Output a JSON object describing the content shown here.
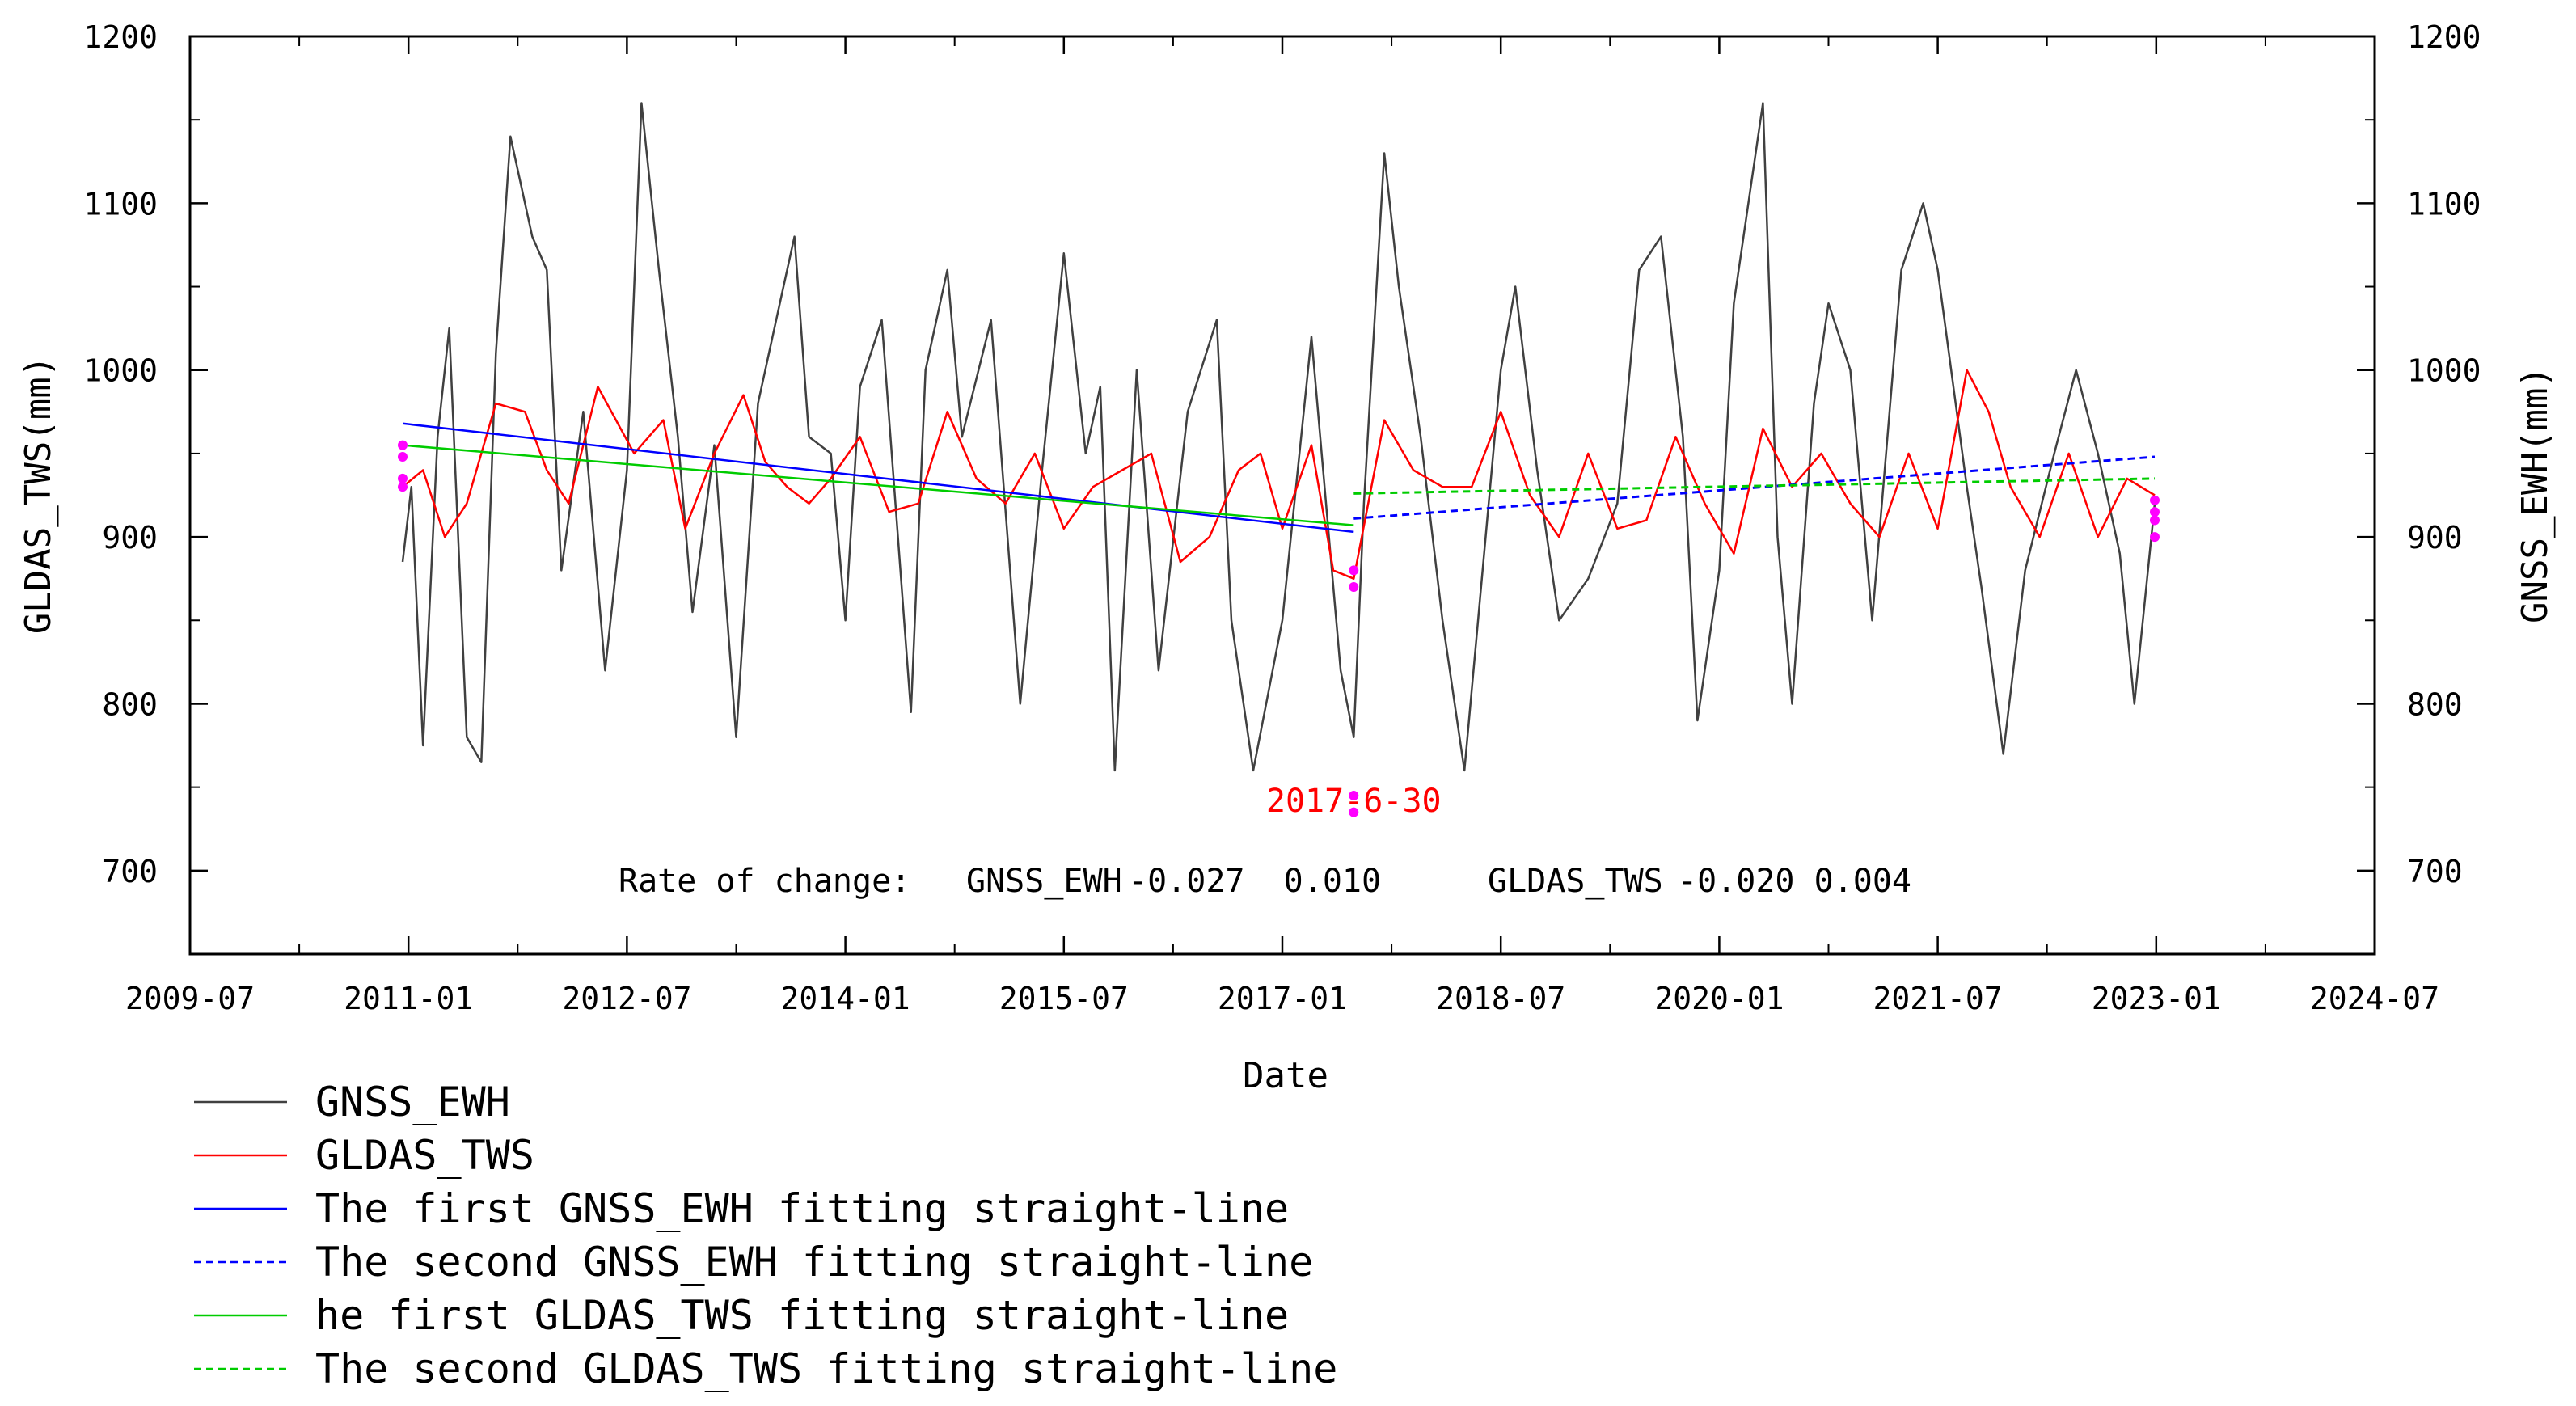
{
  "chart_data": {
    "type": "line",
    "xlabel": "Date",
    "ylabel_left": "GLDAS_TWS(mm)",
    "ylabel_right": "GNSS_EWH(mm)",
    "x_range": [
      "2009-07",
      "2024-07"
    ],
    "x_tick_labels": [
      "2009-07",
      "2011-01",
      "2012-07",
      "2014-01",
      "2015-07",
      "2017-01",
      "2018-07",
      "2020-01",
      "2021-07",
      "2023-01",
      "2024-07"
    ],
    "ylim": [
      650,
      1200
    ],
    "y_tick_values": [
      700,
      800,
      900,
      1000,
      1100,
      1200
    ],
    "y_tick_labels": [
      "700",
      "800",
      "900",
      "1000",
      "1100",
      "1200"
    ],
    "series": [
      {
        "name": "GNSS_EWH",
        "color": "#404040",
        "style": "solid",
        "x": [
          2010.96,
          2011.02,
          2011.1,
          2011.2,
          2011.28,
          2011.4,
          2011.5,
          2011.6,
          2011.7,
          2011.85,
          2011.95,
          2012.05,
          2012.2,
          2012.35,
          2012.5,
          2012.6,
          2012.72,
          2012.85,
          2012.95,
          2013.1,
          2013.25,
          2013.4,
          2013.55,
          2013.65,
          2013.75,
          2013.9,
          2014.0,
          2014.1,
          2014.25,
          2014.45,
          2014.55,
          2014.7,
          2014.8,
          2015.0,
          2015.2,
          2015.35,
          2015.5,
          2015.65,
          2015.75,
          2015.85,
          2016.0,
          2016.15,
          2016.35,
          2016.55,
          2016.65,
          2016.8,
          2017.0,
          2017.2,
          2017.4,
          2017.49,
          2017.56,
          2017.7,
          2017.8,
          2017.95,
          2018.1,
          2018.25,
          2018.5,
          2018.6,
          2018.75,
          2018.9,
          2019.1,
          2019.3,
          2019.45,
          2019.6,
          2019.75,
          2019.85,
          2020.0,
          2020.1,
          2020.3,
          2020.4,
          2020.5,
          2020.65,
          2020.75,
          2020.9,
          2021.05,
          2021.25,
          2021.4,
          2021.5,
          2021.7,
          2021.8,
          2021.95,
          2022.1,
          2022.3,
          2022.45,
          2022.6,
          2022.75,
          2022.85,
          2022.99
        ],
        "values": [
          885,
          930,
          775,
          960,
          1025,
          780,
          765,
          1010,
          1140,
          1080,
          1060,
          880,
          975,
          820,
          940,
          1160,
          1060,
          960,
          855,
          955,
          780,
          980,
          1040,
          1080,
          960,
          950,
          850,
          990,
          1030,
          795,
          1000,
          1060,
          960,
          1030,
          800,
          940,
          1070,
          950,
          990,
          760,
          1000,
          820,
          975,
          1030,
          850,
          760,
          850,
          1020,
          820,
          780,
          920,
          1130,
          1050,
          960,
          850,
          760,
          1000,
          1050,
          940,
          850,
          875,
          920,
          1060,
          1080,
          960,
          790,
          880,
          1040,
          1160,
          900,
          800,
          980,
          1040,
          1000,
          850,
          1060,
          1100,
          1060,
          930,
          870,
          770,
          880,
          950,
          1000,
          950,
          890,
          800,
          920
        ]
      },
      {
        "name": "GLDAS_TWS",
        "color": "#ff0000",
        "style": "solid",
        "x": [
          2010.96,
          2011.1,
          2011.25,
          2011.4,
          2011.6,
          2011.8,
          2011.95,
          2012.1,
          2012.3,
          2012.55,
          2012.75,
          2012.9,
          2013.1,
          2013.3,
          2013.45,
          2013.6,
          2013.75,
          2013.9,
          2014.1,
          2014.3,
          2014.5,
          2014.7,
          2014.9,
          2015.1,
          2015.3,
          2015.5,
          2015.7,
          2015.9,
          2016.1,
          2016.3,
          2016.5,
          2016.7,
          2016.85,
          2017.0,
          2017.2,
          2017.35,
          2017.49,
          2017.7,
          2017.9,
          2018.1,
          2018.3,
          2018.5,
          2018.7,
          2018.9,
          2019.1,
          2019.3,
          2019.5,
          2019.7,
          2019.9,
          2020.1,
          2020.3,
          2020.5,
          2020.7,
          2020.9,
          2021.1,
          2021.3,
          2021.5,
          2021.7,
          2021.85,
          2022.0,
          2022.2,
          2022.4,
          2022.6,
          2022.8,
          2022.99
        ],
        "values": [
          930,
          940,
          900,
          920,
          980,
          975,
          940,
          920,
          990,
          950,
          970,
          905,
          950,
          985,
          945,
          930,
          920,
          935,
          960,
          915,
          920,
          975,
          935,
          920,
          950,
          905,
          930,
          940,
          950,
          885,
          900,
          940,
          950,
          905,
          955,
          880,
          875,
          970,
          940,
          930,
          930,
          975,
          925,
          900,
          950,
          905,
          910,
          960,
          920,
          890,
          965,
          930,
          950,
          920,
          900,
          950,
          905,
          1000,
          975,
          930,
          900,
          950,
          900,
          935,
          925
        ]
      },
      {
        "name": "The first GNSS_EWH fitting straight-line",
        "color": "#0000ff",
        "style": "solid",
        "x": [
          2010.96,
          2017.49
        ],
        "values": [
          968,
          903
        ]
      },
      {
        "name": "The second GNSS_EWH fitting straight-line",
        "color": "#0000ff",
        "style": "dashed",
        "x": [
          2017.49,
          2022.99
        ],
        "values": [
          911,
          948
        ]
      },
      {
        "name": "he first GLDAS_TWS fitting straight-line",
        "color": "#00cc00",
        "style": "solid",
        "x": [
          2010.96,
          2017.49
        ],
        "values": [
          955,
          907
        ]
      },
      {
        "name": "The second GLDAS_TWS fitting straight-line",
        "color": "#00cc00",
        "style": "dashed",
        "x": [
          2017.49,
          2022.99
        ],
        "values": [
          926,
          935
        ]
      }
    ],
    "markers": {
      "color": "#ff00ff",
      "points": [
        {
          "x": 2010.96,
          "values": [
            948,
            955,
            935,
            930
          ]
        },
        {
          "x": 2017.49,
          "values": [
            745,
            735,
            870,
            880
          ]
        },
        {
          "x": 2022.99,
          "values": [
            922,
            915,
            910,
            900
          ]
        }
      ]
    },
    "annotations": [
      {
        "text": "2017-6-30",
        "x": 2017.49,
        "y": 742,
        "color": "#ff0000"
      }
    ],
    "rate_of_change": {
      "label": "Rate of change:",
      "gnss_label": "GNSS_EWH",
      "gnss_values": "-0.027  0.010",
      "gldas_label": "GLDAS_TWS",
      "gldas_values": "-0.020 0.004"
    },
    "legend": {
      "position": "bottom-left",
      "entries": [
        {
          "label": "GNSS_EWH",
          "color": "#404040",
          "style": "solid"
        },
        {
          "label": "GLDAS_TWS",
          "color": "#ff0000",
          "style": "solid"
        },
        {
          "label": "The first GNSS_EWH fitting straight-line",
          "color": "#0000ff",
          "style": "solid"
        },
        {
          "label": "The second GNSS_EWH fitting straight-line",
          "color": "#0000ff",
          "style": "dashed"
        },
        {
          "label": "he first GLDAS_TWS fitting straight-line",
          "color": "#00cc00",
          "style": "solid"
        },
        {
          "label": "The second GLDAS_TWS fitting straight-line",
          "color": "#00cc00",
          "style": "dashed"
        }
      ]
    }
  }
}
